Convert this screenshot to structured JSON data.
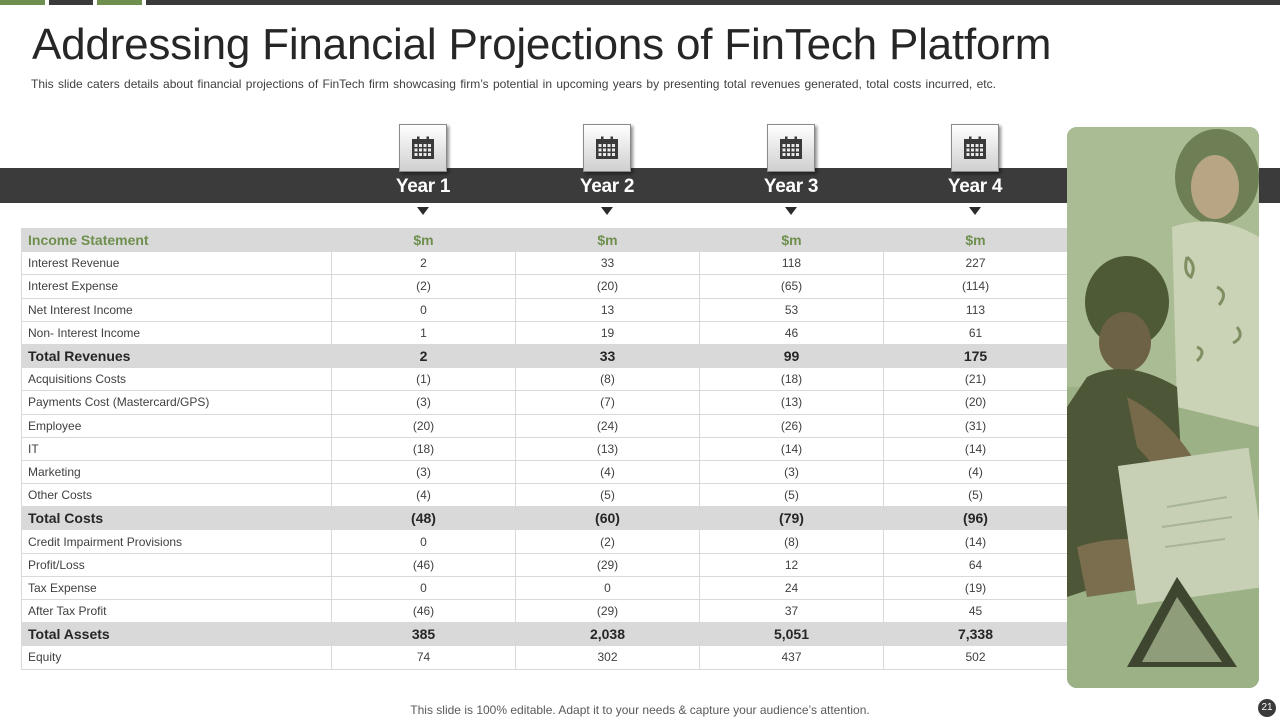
{
  "title": "Addressing Financial Projections of FinTech Platform",
  "subtitle": "This slide caters details about financial projections of FinTech firm showcasing firm’s potential in upcoming years by presenting total revenues  generated, total costs incurred, etc.",
  "years": [
    "Year 1",
    "Year 2",
    "Year 3",
    "Year 4"
  ],
  "table": {
    "header": [
      "Income Statement",
      "$m",
      "$m",
      "$m",
      "$m"
    ],
    "rows": [
      {
        "label": "Interest Revenue",
        "values": [
          "2",
          "33",
          "118",
          "227"
        ],
        "total": false
      },
      {
        "label": "Interest  Expense",
        "values": [
          "(2)",
          "(20)",
          "(65)",
          "(114)"
        ],
        "total": false
      },
      {
        "label": "Net Interest Income",
        "values": [
          "0",
          "13",
          "53",
          "113"
        ],
        "total": false
      },
      {
        "label": "Non- Interest Income",
        "values": [
          "1",
          "19",
          "46",
          "61"
        ],
        "total": false
      },
      {
        "label": "Total Revenues",
        "values": [
          "2",
          "33",
          "99",
          "175"
        ],
        "total": true
      },
      {
        "label": "Acquisitions Costs",
        "values": [
          "(1)",
          "(8)",
          "(18)",
          "(21)"
        ],
        "total": false
      },
      {
        "label": "Payments Cost (Mastercard/GPS)",
        "values": [
          "(3)",
          "(7)",
          "(13)",
          "(20)"
        ],
        "total": false
      },
      {
        "label": "Employee",
        "values": [
          "(20)",
          "(24)",
          "(26)",
          "(31)"
        ],
        "total": false
      },
      {
        "label": "IT",
        "values": [
          "(18)",
          "(13)",
          "(14)",
          "(14)"
        ],
        "total": false
      },
      {
        "label": "Marketing",
        "values": [
          "(3)",
          "(4)",
          "(3)",
          "(4)"
        ],
        "total": false
      },
      {
        "label": "Other Costs",
        "values": [
          "(4)",
          "(5)",
          "(5)",
          "(5)"
        ],
        "total": false
      },
      {
        "label": "Total Costs",
        "values": [
          "(48)",
          "(60)",
          "(79)",
          "(96)"
        ],
        "total": true
      },
      {
        "label": "Credit Impairment Provisions",
        "values": [
          "0",
          "(2)",
          "(8)",
          "(14)"
        ],
        "total": false
      },
      {
        "label": "Profit/Loss",
        "values": [
          "(46)",
          "(29)",
          "12",
          "64"
        ],
        "total": false
      },
      {
        "label": "Tax Expense",
        "values": [
          "0",
          "0",
          "24",
          "(19)"
        ],
        "total": false
      },
      {
        "label": "After Tax Profit",
        "values": [
          "(46)",
          "(29)",
          "37",
          "45"
        ],
        "total": false
      },
      {
        "label": "Total Assets",
        "values": [
          "385",
          "2,038",
          "5,051",
          "7,338"
        ],
        "total": true
      },
      {
        "label": "Equity",
        "values": [
          "74",
          "302",
          "437",
          "502"
        ],
        "total": false
      }
    ]
  },
  "footer": "This slide is 100% editable. Adapt it to your needs & capture your audience’s attention.",
  "page_number": "21",
  "colors": {
    "accent": "#6f8f4e",
    "dark": "#3b3b3b",
    "row_shade": "#d9d9d9"
  }
}
